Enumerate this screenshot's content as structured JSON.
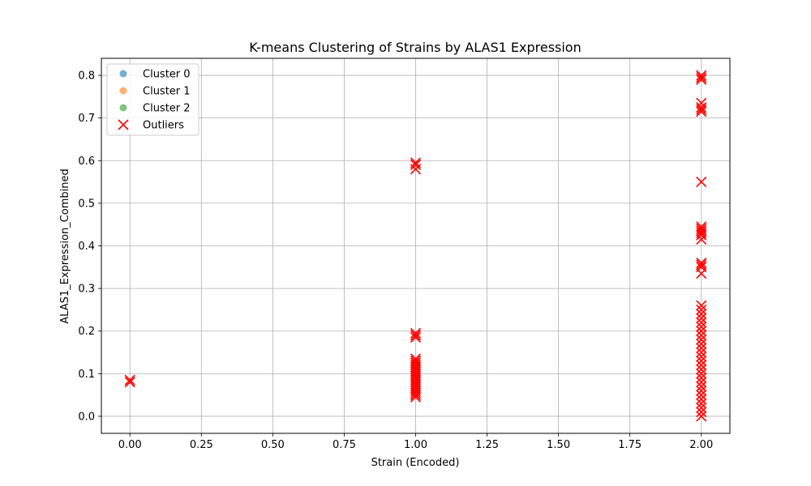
{
  "chart_data": {
    "type": "scatter",
    "title": "K-means Clustering of Strains by ALAS1 Expression",
    "xlabel": "Strain (Encoded)",
    "ylabel": "ALAS1_Expression_Combined",
    "xlim": [
      -0.1,
      2.1
    ],
    "ylim": [
      -0.04,
      0.84
    ],
    "grid": true,
    "legend_position": "top-left",
    "xticks": [
      "0.00",
      "0.25",
      "0.50",
      "0.75",
      "1.00",
      "1.25",
      "1.50",
      "1.75",
      "2.00"
    ],
    "xtick_values": [
      0,
      0.25,
      0.5,
      0.75,
      1.0,
      1.25,
      1.5,
      1.75,
      2.0
    ],
    "yticks": [
      "0.0",
      "0.1",
      "0.2",
      "0.3",
      "0.4",
      "0.5",
      "0.6",
      "0.7",
      "0.8"
    ],
    "ytick_values": [
      0,
      0.1,
      0.2,
      0.3,
      0.4,
      0.5,
      0.6,
      0.7,
      0.8
    ],
    "colors": {
      "cluster0": "#1f77b4",
      "cluster1": "#ff7f0e",
      "cluster2": "#2ca02c",
      "outliers": "#ff0000",
      "grid": "#b0b0b0"
    },
    "series": [
      {
        "name": "Cluster 0",
        "marker": "circle",
        "points": []
      },
      {
        "name": "Cluster 1",
        "marker": "circle",
        "points": []
      },
      {
        "name": "Cluster 2",
        "marker": "circle",
        "points": []
      },
      {
        "name": "Outliers",
        "marker": "x",
        "points": [
          [
            0,
            0.08
          ],
          [
            0,
            0.085
          ],
          [
            1,
            0.58
          ],
          [
            1,
            0.59
          ],
          [
            1,
            0.595
          ],
          [
            1,
            0.185
          ],
          [
            1,
            0.19
          ],
          [
            1,
            0.195
          ],
          [
            1,
            0.045
          ],
          [
            1,
            0.05
          ],
          [
            1,
            0.055
          ],
          [
            1,
            0.06
          ],
          [
            1,
            0.065
          ],
          [
            1,
            0.07
          ],
          [
            1,
            0.075
          ],
          [
            1,
            0.08
          ],
          [
            1,
            0.085
          ],
          [
            1,
            0.09
          ],
          [
            1,
            0.095
          ],
          [
            1,
            0.1
          ],
          [
            1,
            0.105
          ],
          [
            1,
            0.11
          ],
          [
            1,
            0.115
          ],
          [
            1,
            0.12
          ],
          [
            1,
            0.125
          ],
          [
            1,
            0.13
          ],
          [
            1,
            0.135
          ],
          [
            2,
            0.79
          ],
          [
            2,
            0.795
          ],
          [
            2,
            0.8
          ],
          [
            2,
            0.715
          ],
          [
            2,
            0.72
          ],
          [
            2,
            0.725
          ],
          [
            2,
            0.735
          ],
          [
            2,
            0.55
          ],
          [
            2,
            0.415
          ],
          [
            2,
            0.425
          ],
          [
            2,
            0.43
          ],
          [
            2,
            0.435
          ],
          [
            2,
            0.44
          ],
          [
            2,
            0.445
          ],
          [
            2,
            0.335
          ],
          [
            2,
            0.35
          ],
          [
            2,
            0.355
          ],
          [
            2,
            0.36
          ],
          [
            2,
            0.0
          ],
          [
            2,
            0.01
          ],
          [
            2,
            0.02
          ],
          [
            2,
            0.03
          ],
          [
            2,
            0.04
          ],
          [
            2,
            0.05
          ],
          [
            2,
            0.06
          ],
          [
            2,
            0.07
          ],
          [
            2,
            0.08
          ],
          [
            2,
            0.09
          ],
          [
            2,
            0.1
          ],
          [
            2,
            0.11
          ],
          [
            2,
            0.12
          ],
          [
            2,
            0.13
          ],
          [
            2,
            0.14
          ],
          [
            2,
            0.15
          ],
          [
            2,
            0.16
          ],
          [
            2,
            0.17
          ],
          [
            2,
            0.18
          ],
          [
            2,
            0.19
          ],
          [
            2,
            0.2
          ],
          [
            2,
            0.21
          ],
          [
            2,
            0.22
          ],
          [
            2,
            0.23
          ],
          [
            2,
            0.24
          ],
          [
            2,
            0.25
          ],
          [
            2,
            0.26
          ]
        ]
      }
    ]
  }
}
